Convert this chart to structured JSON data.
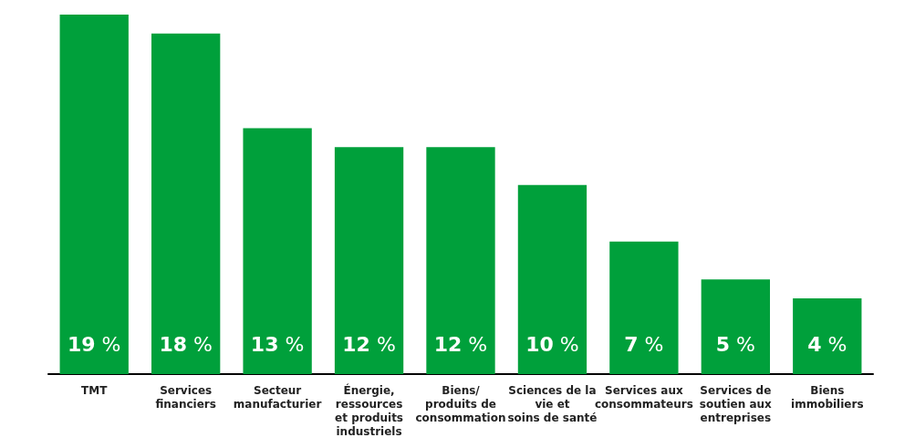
{
  "chart_data": {
    "type": "bar",
    "categories": [
      "TMT",
      "Services\nfinanciers",
      "Secteur\nmanufacturier",
      "Énergie,\nressources\net produits\nindustriels",
      "Biens/\nproduits de\nconsommation",
      "Sciences de la\nvie et\nsoins de santé",
      "Services aux\nconsommateurs",
      "Services de\nsoutien aux\nentreprises",
      "Biens\nimmobiliers"
    ],
    "values": [
      19,
      18,
      13,
      12,
      12,
      10,
      7,
      5,
      4
    ],
    "value_labels": [
      "19 %",
      "18 %",
      "13 %",
      "12 %",
      "12 %",
      "10 %",
      "7 %",
      "5 %",
      "4 %"
    ],
    "color": "#00a03b"
  }
}
